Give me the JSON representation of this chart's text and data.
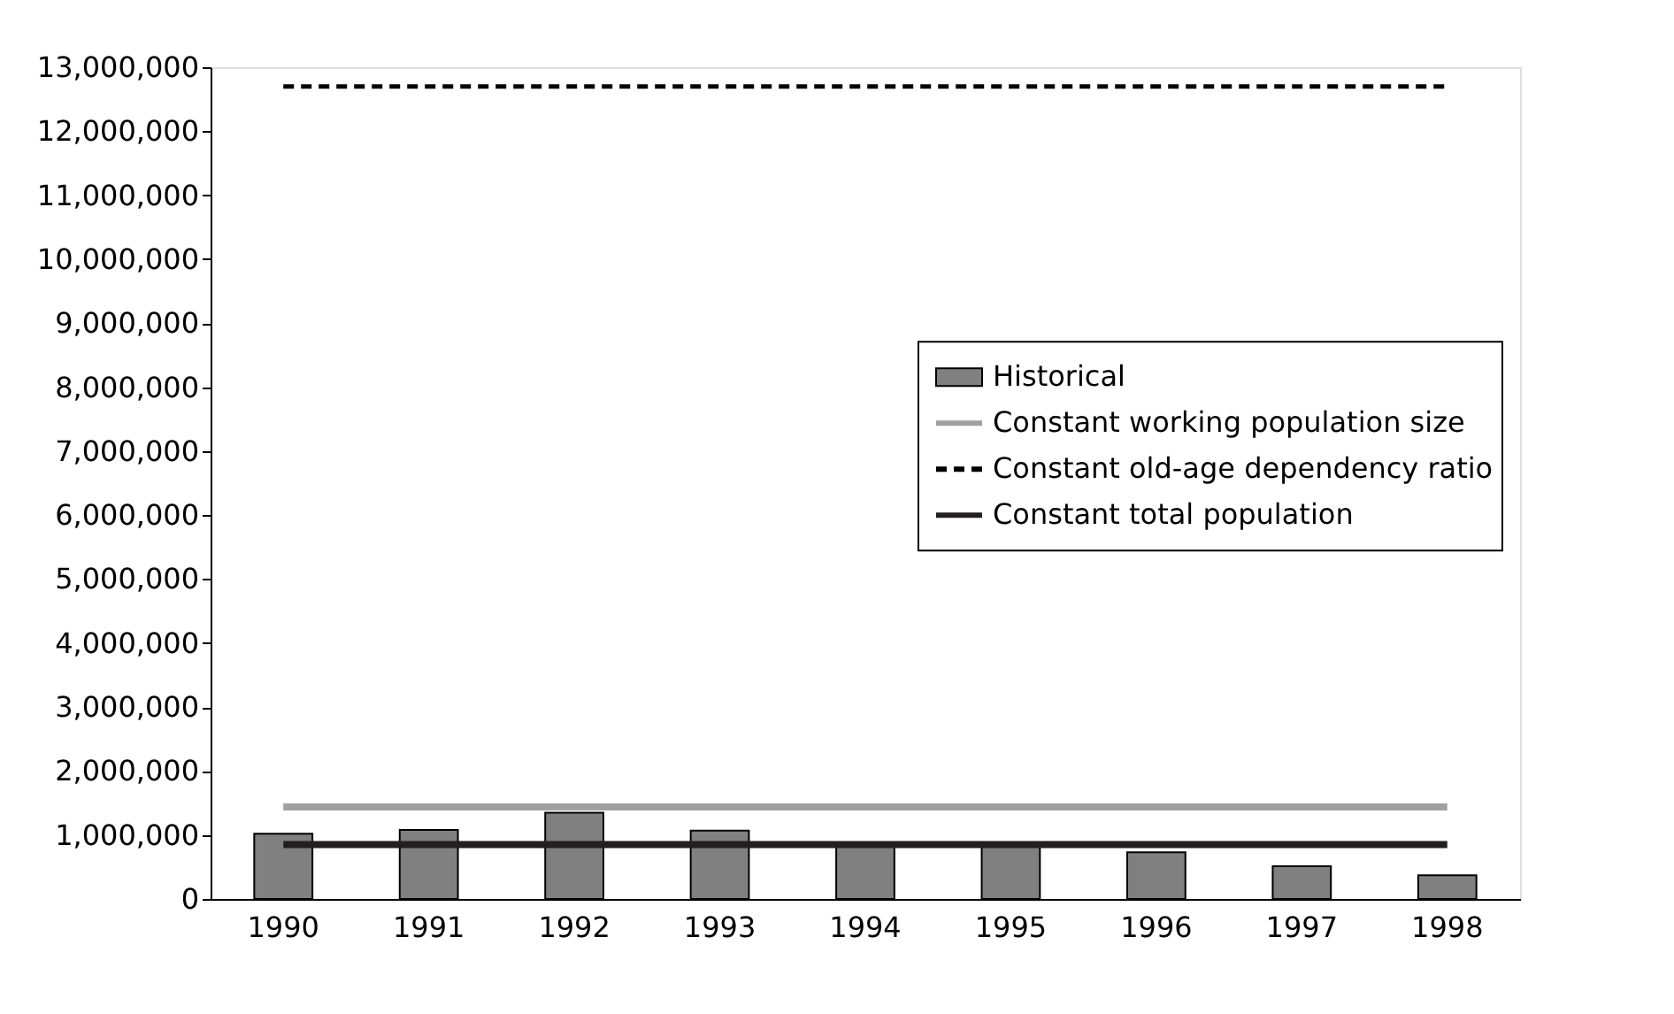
{
  "chart_data": {
    "type": "bar",
    "categories": [
      "1990",
      "1991",
      "1992",
      "1993",
      "1994",
      "1995",
      "1996",
      "1997",
      "1998"
    ],
    "series": [
      {
        "name": "Historical",
        "type": "bar",
        "color": "#808080",
        "values": [
          1020000,
          1080000,
          1350000,
          1070000,
          830000,
          850000,
          730000,
          510000,
          370000
        ]
      },
      {
        "name": "Constant working population size",
        "type": "line",
        "line_style": "solid",
        "color": "#a0a0a0",
        "values": [
          1440000,
          1440000,
          1440000,
          1440000,
          1440000,
          1440000,
          1440000,
          1440000,
          1440000
        ]
      },
      {
        "name": "Constant old-age dependency ratio",
        "type": "line",
        "line_style": "dashed",
        "color": "#000000",
        "values": [
          12700000,
          12700000,
          12700000,
          12700000,
          12700000,
          12700000,
          12700000,
          12700000,
          12700000
        ]
      },
      {
        "name": "Constant total population",
        "type": "line",
        "line_style": "solid",
        "color": "#231f20",
        "values": [
          850000,
          850000,
          850000,
          850000,
          850000,
          850000,
          850000,
          850000,
          850000
        ]
      }
    ],
    "ylim": [
      0,
      13000000
    ],
    "yticks": [
      0,
      {
        "value": 1000000,
        "label": "1,000,000"
      },
      {
        "value": 2000000,
        "label": "2,000,000"
      },
      {
        "value": 3000000,
        "label": "3,000,000"
      },
      {
        "value": 4000000,
        "label": "4,000,000"
      },
      {
        "value": 5000000,
        "label": "5,000,000"
      },
      {
        "value": 6000000,
        "label": "6,000,000"
      },
      {
        "value": 7000000,
        "label": "7,000,000"
      },
      {
        "value": 8000000,
        "label": "8,000,000"
      },
      {
        "value": 9000000,
        "label": "9,000,000"
      },
      {
        "value": 10000000,
        "label": "10,000,000"
      },
      {
        "value": 11000000,
        "label": "11,000,000"
      },
      {
        "value": 12000000,
        "label": "12,000,000"
      },
      {
        "value": 13000000,
        "label": "13,000,000"
      }
    ],
    "grid": false,
    "legend": "right"
  }
}
